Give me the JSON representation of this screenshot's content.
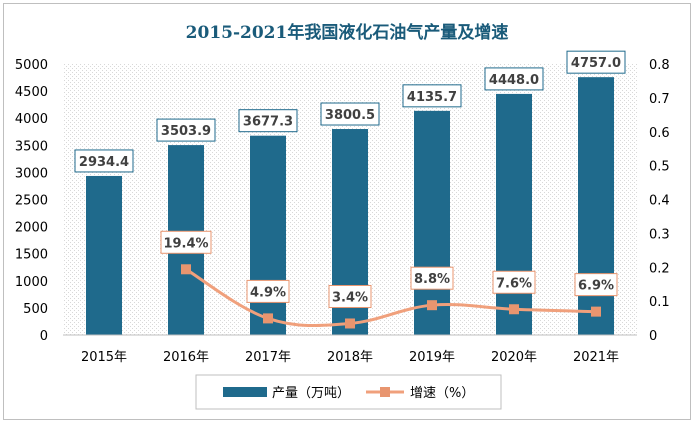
{
  "chart_data": {
    "type": "bar",
    "title": "2015-2021年我国液化石油气产量及增速",
    "categories": [
      "2015年",
      "2016年",
      "2017年",
      "2018年",
      "2019年",
      "2020年",
      "2021年"
    ],
    "series": [
      {
        "name": "产量（万吨）",
        "type": "bar",
        "axis": "left",
        "values": [
          2934.4,
          3503.9,
          3677.3,
          3800.5,
          4135.7,
          4448.0,
          4757.0
        ],
        "labels": [
          "2934.4",
          "3503.9",
          "3677.3",
          "3800.5",
          "4135.7",
          "4448.0",
          "4757.0"
        ],
        "color": "#1f6a8c"
      },
      {
        "name": "增速（%）",
        "type": "line",
        "axis": "right",
        "values": [
          null,
          0.194,
          0.049,
          0.034,
          0.088,
          0.076,
          0.069
        ],
        "labels": [
          "",
          "19.4%",
          "4.9%",
          "3.4%",
          "8.8%",
          "7.6%",
          "6.9%"
        ],
        "color": "#f0a07c"
      }
    ],
    "y_left": {
      "min": 0,
      "max": 5000,
      "ticks": [
        "0",
        "500",
        "1000",
        "1500",
        "2000",
        "2500",
        "3000",
        "3500",
        "4000",
        "4500",
        "5000"
      ]
    },
    "y_right": {
      "min": 0,
      "max": 0.8,
      "ticks": [
        "0",
        "0.1",
        "0.2",
        "0.3",
        "0.4",
        "0.5",
        "0.6",
        "0.7",
        "0.8"
      ]
    },
    "grid": false,
    "legend_position": "bottom"
  }
}
